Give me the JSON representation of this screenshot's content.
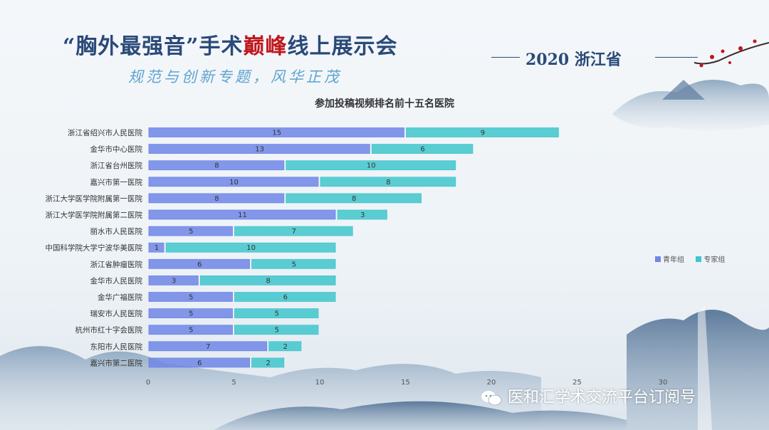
{
  "header": {
    "title_part1": "“胸外最强音”手术",
    "title_highlight": "巅峰",
    "title_part2": "线上展示会",
    "subtitle": "规范与创新专题，风华正茂",
    "event_year": "2020 浙江省"
  },
  "watermark": {
    "text": "医和汇学术交流平台订阅号",
    "icon": "wechat-icon"
  },
  "colors": {
    "youth": "#6f86e6",
    "expert": "#3fc6cc",
    "accent": "#c0161b",
    "title": "#2a4a78"
  },
  "chart_data": {
    "type": "bar",
    "orientation": "horizontal",
    "stacked": true,
    "title": "参加投稿视频排名前十五名医院",
    "categories": [
      "浙江省绍兴市人民医院",
      "金华市中心医院",
      "浙江省台州医院",
      "嘉兴市第一医院",
      "浙江大学医学院附属第一医院",
      "浙江大学医学院附属第二医院",
      "丽水市人民医院",
      "中国科学院大学宁波华美医院",
      "浙江省肿瘤医院",
      "金华市人民医院",
      "金华广福医院",
      "瑞安市人民医院",
      "杭州市红十字会医院",
      "东阳市人民医院",
      "嘉兴市第二医院"
    ],
    "series": [
      {
        "name": "青年组",
        "values": [
          15,
          13,
          8,
          10,
          8,
          11,
          5,
          1,
          6,
          3,
          5,
          5,
          5,
          7,
          6
        ]
      },
      {
        "name": "专家组",
        "values": [
          9,
          6,
          10,
          8,
          8,
          3,
          7,
          10,
          5,
          8,
          6,
          5,
          5,
          2,
          2
        ]
      }
    ],
    "xlim": [
      0,
      30
    ],
    "xticks": [
      "0",
      "5",
      "10",
      "15",
      "20",
      "25",
      "30"
    ],
    "legend_position": "right",
    "grid": false
  }
}
